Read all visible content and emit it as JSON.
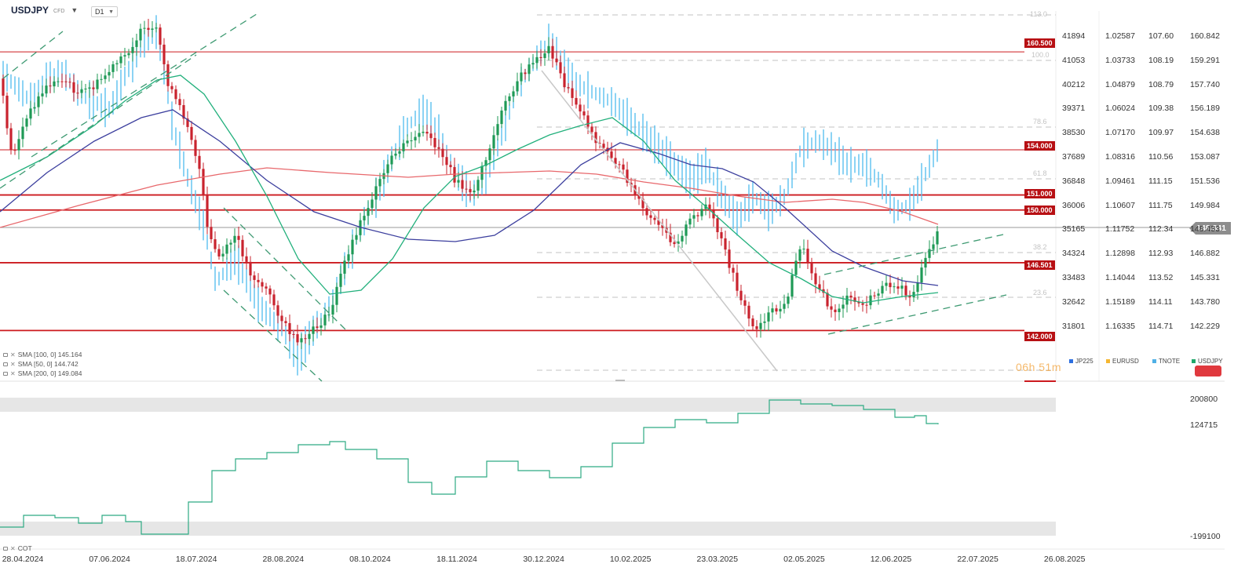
{
  "header": {
    "symbol": "USDJPY",
    "instrument_type": "CFD",
    "timeframe": "D1"
  },
  "indicators": [
    {
      "label": "SMA [100, 0] 145.164",
      "color": "#3c3f9e"
    },
    {
      "label": "SMA [50, 0] 144.742",
      "color": "#22b07c"
    },
    {
      "label": "SMA [200, 0] 149.084",
      "color": "#e8686c"
    }
  ],
  "current_price": "148.841",
  "level_labels": [
    {
      "text": "160.500",
      "value": 160.5
    },
    {
      "text": "154.000",
      "value": 154.0
    },
    {
      "text": "151.000",
      "value": 151.0
    },
    {
      "text": "150.000",
      "value": 150.0
    },
    {
      "text": "146.501",
      "value": 146.501
    },
    {
      "text": "142.000",
      "value": 142.0
    }
  ],
  "fib_labels": [
    "113.0",
    "100.0",
    "78.6",
    "61.8",
    "38.2",
    "23.6"
  ],
  "compare_columns": [
    {
      "name": "JP225",
      "color": "#2d6fe0",
      "values": [
        "41894",
        "41053",
        "40212",
        "39371",
        "38530",
        "37689",
        "36848",
        "36006",
        "35165",
        "34324",
        "33483",
        "32642",
        "31801"
      ]
    },
    {
      "name": "EURUSD",
      "color": "#f5b732",
      "values": [
        "1.02587",
        "1.03733",
        "1.04879",
        "1.06024",
        "1.07170",
        "1.08316",
        "1.09461",
        "1.10607",
        "1.11752",
        "1.12898",
        "1.14044",
        "1.15189",
        "1.16335"
      ]
    },
    {
      "name": "TNOTE",
      "color": "#4fb0e6",
      "values": [
        "107.60",
        "108.19",
        "108.79",
        "109.38",
        "109.97",
        "110.56",
        "111.15",
        "111.75",
        "112.34",
        "112.93",
        "113.52",
        "114.11",
        "114.71"
      ]
    },
    {
      "name": "USDJPY",
      "color": "#1fa86a",
      "values": [
        "160.842",
        "159.291",
        "157.740",
        "156.189",
        "154.638",
        "153.087",
        "151.536",
        "149.984",
        "148.433",
        "146.882",
        "145.331",
        "143.780",
        "142.229"
      ]
    }
  ],
  "timer": "06h 51m",
  "cot": {
    "label": "COT",
    "scale": [
      "200800",
      "124715",
      "-199100"
    ]
  },
  "x_labels": [
    "28.04.2024",
    "07.06.2024",
    "18.07.2024",
    "28.08.2024",
    "08.10.2024",
    "18.11.2024",
    "30.12.2024",
    "10.02.2025",
    "23.03.2025",
    "02.05.2025",
    "12.06.2025",
    "22.07.2025",
    "26.08.2025"
  ],
  "colors": {
    "level_line": "#cc1a1f",
    "level_tag": "#b70f13",
    "bull": "#1f9a56",
    "bear": "#c9232e",
    "tnote": "#5bc0f0",
    "cot_line": "#2eab84"
  }
}
